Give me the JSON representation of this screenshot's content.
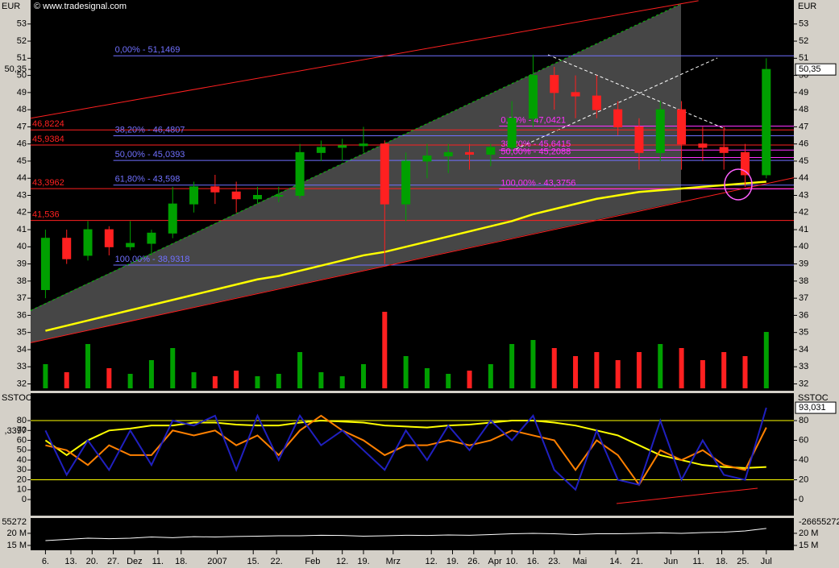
{
  "source": "© www.tradesignal.com",
  "chart_data": [
    {
      "type": "candlestick",
      "y_label": "EUR",
      "xlim": [
        -0.7,
        35.3
      ],
      "ylim": [
        31.6,
        54.4
      ],
      "yticks": [
        32,
        33,
        34,
        35,
        36,
        37,
        38,
        39,
        40,
        41,
        42,
        43,
        44,
        45,
        46,
        47,
        48,
        49,
        50,
        51,
        52,
        53
      ],
      "xticks": [
        {
          "value": 0,
          "label": "6."
        },
        {
          "value": 1.2,
          "label": "13."
        },
        {
          "value": 2.2,
          "label": "20."
        },
        {
          "value": 3.2,
          "label": "27."
        },
        {
          "value": 4.2,
          "label": "Dez"
        },
        {
          "value": 5.3,
          "label": "11."
        },
        {
          "value": 6.4,
          "label": "18."
        },
        {
          "value": 8.1,
          "label": "2007"
        },
        {
          "value": 9.8,
          "label": "15."
        },
        {
          "value": 10.9,
          "label": "22."
        },
        {
          "value": 12.6,
          "label": "Feb"
        },
        {
          "value": 14,
          "label": "12."
        },
        {
          "value": 15,
          "label": "19."
        },
        {
          "value": 16.4,
          "label": "Mrz"
        },
        {
          "value": 18.2,
          "label": "12."
        },
        {
          "value": 19.2,
          "label": "19."
        },
        {
          "value": 20.2,
          "label": "26."
        },
        {
          "value": 21.2,
          "label": "Apr"
        },
        {
          "value": 22,
          "label": "10."
        },
        {
          "value": 23,
          "label": "16."
        },
        {
          "value": 24,
          "label": "23."
        },
        {
          "value": 25.2,
          "label": "Mai"
        },
        {
          "value": 26.9,
          "label": "14."
        },
        {
          "value": 27.9,
          "label": "21."
        },
        {
          "value": 29.5,
          "label": "Jun"
        },
        {
          "value": 30.8,
          "label": "11."
        },
        {
          "value": 31.9,
          "label": "18."
        },
        {
          "value": 32.9,
          "label": "25."
        },
        {
          "value": 34,
          "label": "Jul"
        }
      ],
      "open": [
        37.5,
        40.5,
        39.5,
        41,
        40,
        40.2,
        40.8,
        42.5,
        43.5,
        43.2,
        42.8,
        43,
        43,
        45.5,
        45.8,
        45.9,
        46,
        42.5,
        45,
        45.3,
        45.5,
        45.4,
        45.8,
        47.5,
        50,
        49,
        48.8,
        48,
        47,
        45.5,
        48,
        46,
        45.8,
        45.5,
        44.2
      ],
      "high": [
        41,
        41,
        41.5,
        41.2,
        41.5,
        41,
        43.5,
        43.8,
        44.2,
        43.8,
        43.5,
        43.5,
        46,
        46.2,
        46.3,
        47,
        46.2,
        45.5,
        46,
        46,
        46,
        46,
        48.5,
        51.2,
        50.5,
        50,
        50,
        48.5,
        47.5,
        48.5,
        48.5,
        47,
        47,
        46,
        51
      ],
      "low": [
        37,
        39,
        39.2,
        39.5,
        39.8,
        39.5,
        40.5,
        42,
        42.5,
        42,
        42.5,
        42.6,
        42.8,
        45,
        45,
        45.5,
        39,
        41.5,
        44,
        44.3,
        44.5,
        44.7,
        45.5,
        47,
        48,
        47.5,
        47.5,
        46.5,
        44.5,
        45,
        44.5,
        45,
        44.5,
        43.5,
        44
      ],
      "close": [
        40.5,
        39.3,
        41,
        40,
        40.2,
        40.8,
        42.5,
        43.5,
        43.2,
        42.8,
        43,
        43,
        45.5,
        45.8,
        45.9,
        46,
        42.5,
        45,
        45.3,
        45.5,
        45.4,
        45.8,
        47.5,
        50,
        49,
        48.8,
        48,
        47,
        45.5,
        48,
        46,
        45.8,
        45.5,
        44.2,
        50.35
      ],
      "up_color": "#00a000",
      "down_color": "#ff2020",
      "last_value": 50.35,
      "last_label": "50,35",
      "moving_average": {
        "color": "#ffff00",
        "values": [
          35.1,
          35.4,
          35.7,
          36,
          36.3,
          36.6,
          36.9,
          37.2,
          37.5,
          37.8,
          38.1,
          38.3,
          38.6,
          38.9,
          39.2,
          39.5,
          39.7,
          40,
          40.3,
          40.6,
          40.9,
          41.2,
          41.5,
          41.9,
          42.2,
          42.5,
          42.8,
          43,
          43.2,
          43.3,
          43.4,
          43.5,
          43.6,
          43.7,
          43.8
        ]
      },
      "trend_lines": [
        {
          "color": "#ff2020",
          "x": [
            -0.7,
            30.8
          ],
          "values": [
            47.5,
            54.36
          ]
        },
        {
          "color": "#ff2020",
          "x": [
            -0.7,
            35.3
          ],
          "values": [
            34.4,
            44.03
          ]
        },
        {
          "color": "#00c000",
          "dashed": true,
          "x": [
            -0.7,
            29.9
          ],
          "values": [
            36.28,
            54.13
          ]
        }
      ],
      "levels": [
        {
          "value": 46.8224,
          "label": "46,8224",
          "color": "#ff2020"
        },
        {
          "value": 45.9384,
          "label": "45,9384",
          "color": "#ff2020"
        },
        {
          "value": 43.3962,
          "label": "43,3962",
          "color": "#ff2020"
        },
        {
          "value": 41.536,
          "label": "41,536",
          "color": "#ff2020"
        }
      ],
      "retracements": [
        {
          "color": "#7070ff",
          "start": 3.2,
          "levels": [
            {
              "value": 51.1469,
              "label": "0,00% - 51,1469"
            },
            {
              "value": 46.4807,
              "label": "38,20% - 46,4807"
            },
            {
              "value": 45.0393,
              "label": "50,00% - 45,0393"
            },
            {
              "value": 43.598,
              "label": "61,80% - 43,598"
            },
            {
              "value": 38.9318,
              "label": "100,00% - 38,9318"
            }
          ]
        },
        {
          "color": "#ff30ff",
          "start": 21.4,
          "levels": [
            {
              "value": 47.0421,
              "label": "0,00% - 47,0421"
            },
            {
              "value": 45.6415,
              "label": "38,20% - 45,6415"
            },
            {
              "value": 45.2088,
              "label": "50,00% - 45,2088"
            },
            {
              "value": 43.3756,
              "label": "100,00% - 43,3756"
            }
          ]
        }
      ],
      "volume": {
        "ylim": [
          0,
          100
        ],
        "values": [
          30,
          20,
          55,
          25,
          18,
          35,
          50,
          20,
          15,
          22,
          15,
          18,
          45,
          20,
          15,
          30,
          95,
          40,
          25,
          18,
          22,
          30,
          55,
          60,
          50,
          40,
          45,
          35,
          45,
          55,
          50,
          35,
          45,
          40,
          70
        ]
      }
    },
    {
      "type": "line",
      "title": "SSTOC",
      "ylim": [
        -16.3,
        107.8
      ],
      "yticks": [
        0,
        10,
        20,
        30,
        40,
        50,
        60,
        70,
        80
      ],
      "y2ticks": [
        0,
        20,
        40,
        60,
        80
      ],
      "levels": [
        80,
        20
      ],
      "level_color": "#ffff00",
      "left_label": ",3397",
      "series": [
        {
          "color": "#2020c0",
          "values": [
            70,
            25,
            60,
            30,
            70,
            35,
            80,
            75,
            85,
            30,
            85,
            40,
            85,
            55,
            70,
            50,
            30,
            70,
            40,
            75,
            50,
            80,
            60,
            85,
            30,
            10,
            70,
            20,
            15,
            80,
            20,
            60,
            25,
            20,
            93.031
          ],
          "value_label": "93,031"
        },
        {
          "color": "#ff8000",
          "values": [
            55,
            50,
            35,
            55,
            45,
            45,
            70,
            65,
            70,
            55,
            65,
            45,
            70,
            85,
            70,
            60,
            45,
            55,
            55,
            60,
            55,
            60,
            70,
            65,
            60,
            30,
            60,
            45,
            15,
            50,
            40,
            50,
            35,
            30,
            73
          ]
        },
        {
          "color": "#ffff00",
          "values": [
            60,
            45,
            60,
            70,
            72,
            75,
            75,
            78,
            78,
            76,
            75,
            75,
            78,
            80,
            79,
            78,
            75,
            74,
            73,
            75,
            76,
            78,
            80,
            80,
            78,
            75,
            70,
            65,
            55,
            45,
            40,
            35,
            33,
            32,
            33
          ]
        }
      ]
    },
    {
      "type": "line",
      "color": "#ffffff",
      "ylim": [
        13,
        26.3
      ],
      "yticks": [
        {
          "value": 20,
          "label": "20 M"
        },
        {
          "value": 15,
          "label": "15 M"
        }
      ],
      "left_label": "55272",
      "right_label": "-26655272",
      "values": [
        17,
        17.5,
        18,
        17.8,
        18,
        18.5,
        18.2,
        18.6,
        18.5,
        18.7,
        18.8,
        19,
        19,
        19.2,
        19.1,
        18.8,
        19,
        19.2,
        19.1,
        19.3,
        19.2,
        19.5,
        19.8,
        20,
        19.8,
        19.5,
        19.8,
        19.8,
        20,
        20.2,
        20,
        20.3,
        20.5,
        21,
        22
      ]
    }
  ]
}
